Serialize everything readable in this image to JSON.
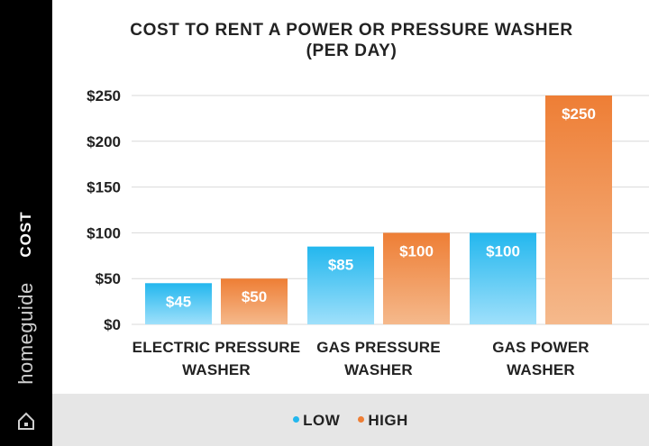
{
  "sidebar": {
    "brand": "homeguide"
  },
  "chart_data": {
    "type": "bar",
    "title": "COST TO RENT A POWER OR PRESSURE WASHER",
    "subtitle": "(PER DAY)",
    "ylabel": "COST",
    "xlabel": "",
    "categories": [
      [
        "ELECTRIC PRESSURE",
        "WASHER"
      ],
      [
        "GAS PRESSURE",
        "WASHER"
      ],
      [
        "GAS POWER",
        "WASHER"
      ]
    ],
    "series": [
      {
        "name": "LOW",
        "values": [
          45,
          85,
          100
        ],
        "labels": [
          "$45",
          "$85",
          "$100"
        ],
        "color_top": "#23b7ee",
        "color_bottom": "#9fe0fb"
      },
      {
        "name": "HIGH",
        "values": [
          50,
          100,
          250
        ],
        "labels": [
          "$50",
          "$100",
          "$250"
        ],
        "color_top": "#ee7e35",
        "color_bottom": "#f5b98c"
      }
    ],
    "y_ticks": [
      0,
      50,
      100,
      150,
      200,
      250
    ],
    "y_tick_labels": [
      "$0",
      "$50",
      "$100",
      "$150",
      "$200",
      "$250"
    ],
    "ylim": [
      0,
      250
    ],
    "grid": true,
    "legend_position": "bottom"
  }
}
